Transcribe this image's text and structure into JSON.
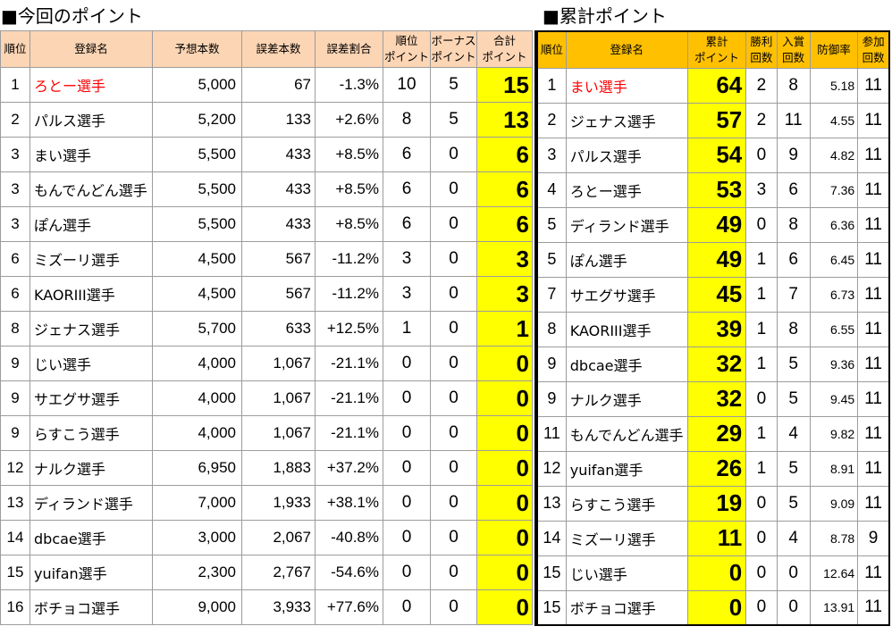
{
  "colors": {
    "current_header_bg": "#FCD5B4",
    "cumulative_header_bg": "#FFC000",
    "points_column_bg": "#FFFF00",
    "text": "#000000"
  },
  "current": {
    "title": "■今回のポイント",
    "columns": [
      {
        "key": "rank",
        "label": "順位"
      },
      {
        "key": "name",
        "label": "登録名"
      },
      {
        "key": "predicted",
        "label": "予想本数"
      },
      {
        "key": "error",
        "label": "誤差本数"
      },
      {
        "key": "error_rate",
        "label": "誤差割合"
      },
      {
        "key": "rank_points",
        "label": "順位\nポイント"
      },
      {
        "key": "bonus_points",
        "label": "ボーナス\nポイント"
      },
      {
        "key": "total_points",
        "label": "合計\nポイント"
      }
    ],
    "rows": [
      {
        "rank": "1",
        "name": "ろとー選手",
        "name_color": "#FF0000",
        "predicted": "5,000",
        "error": "67",
        "error_rate": "-1.3%",
        "rank_points": "10",
        "bonus_points": "5",
        "total_points": "15"
      },
      {
        "rank": "2",
        "name": "パルス選手",
        "predicted": "5,200",
        "error": "133",
        "error_rate": "+2.6%",
        "rank_points": "8",
        "bonus_points": "5",
        "total_points": "13"
      },
      {
        "rank": "3",
        "name": "まい選手",
        "predicted": "5,500",
        "error": "433",
        "error_rate": "+8.5%",
        "rank_points": "6",
        "bonus_points": "0",
        "total_points": "6"
      },
      {
        "rank": "3",
        "name": "もんでんどん選手",
        "predicted": "5,500",
        "error": "433",
        "error_rate": "+8.5%",
        "rank_points": "6",
        "bonus_points": "0",
        "total_points": "6"
      },
      {
        "rank": "3",
        "name": "ぽん選手",
        "predicted": "5,500",
        "error": "433",
        "error_rate": "+8.5%",
        "rank_points": "6",
        "bonus_points": "0",
        "total_points": "6"
      },
      {
        "rank": "6",
        "name": "ミズーリ選手",
        "predicted": "4,500",
        "error": "567",
        "error_rate": "-11.2%",
        "rank_points": "3",
        "bonus_points": "0",
        "total_points": "3"
      },
      {
        "rank": "6",
        "name": "KAORIII選手",
        "predicted": "4,500",
        "error": "567",
        "error_rate": "-11.2%",
        "rank_points": "3",
        "bonus_points": "0",
        "total_points": "3"
      },
      {
        "rank": "8",
        "name": "ジェナス選手",
        "predicted": "5,700",
        "error": "633",
        "error_rate": "+12.5%",
        "rank_points": "1",
        "bonus_points": "0",
        "total_points": "1"
      },
      {
        "rank": "9",
        "name": "じい選手",
        "predicted": "4,000",
        "error": "1,067",
        "error_rate": "-21.1%",
        "rank_points": "0",
        "bonus_points": "0",
        "total_points": "0"
      },
      {
        "rank": "9",
        "name": "サエグサ選手",
        "predicted": "4,000",
        "error": "1,067",
        "error_rate": "-21.1%",
        "rank_points": "0",
        "bonus_points": "0",
        "total_points": "0"
      },
      {
        "rank": "9",
        "name": "らすこう選手",
        "predicted": "4,000",
        "error": "1,067",
        "error_rate": "-21.1%",
        "rank_points": "0",
        "bonus_points": "0",
        "total_points": "0"
      },
      {
        "rank": "12",
        "name": "ナルク選手",
        "predicted": "6,950",
        "error": "1,883",
        "error_rate": "+37.2%",
        "rank_points": "0",
        "bonus_points": "0",
        "total_points": "0"
      },
      {
        "rank": "13",
        "name": "ディランド選手",
        "predicted": "7,000",
        "error": "1,933",
        "error_rate": "+38.1%",
        "rank_points": "0",
        "bonus_points": "0",
        "total_points": "0"
      },
      {
        "rank": "14",
        "name": "dbcae選手",
        "predicted": "3,000",
        "error": "2,067",
        "error_rate": "-40.8%",
        "rank_points": "0",
        "bonus_points": "0",
        "total_points": "0"
      },
      {
        "rank": "15",
        "name": "yuifan選手",
        "predicted": "2,300",
        "error": "2,767",
        "error_rate": "-54.6%",
        "rank_points": "0",
        "bonus_points": "0",
        "total_points": "0"
      },
      {
        "rank": "16",
        "name": "ボチョコ選手",
        "predicted": "9,000",
        "error": "3,933",
        "error_rate": "+77.6%",
        "rank_points": "0",
        "bonus_points": "0",
        "total_points": "0"
      }
    ]
  },
  "cumulative": {
    "title": "■累計ポイント",
    "columns": [
      {
        "key": "rank",
        "label": "順位"
      },
      {
        "key": "name",
        "label": "登録名"
      },
      {
        "key": "cum_points",
        "label": "累計\nポイント"
      },
      {
        "key": "wins",
        "label": "勝利\n回数"
      },
      {
        "key": "placings",
        "label": "入賞\n回数"
      },
      {
        "key": "defense_rate",
        "label": "防御率"
      },
      {
        "key": "appearances",
        "label": "参加\n回数"
      }
    ],
    "rows": [
      {
        "rank": "1",
        "name": "まい選手",
        "name_color": "#FF0000",
        "cum_points": "64",
        "wins": "2",
        "placings": "8",
        "defense_rate": "5.18",
        "appearances": "11"
      },
      {
        "rank": "2",
        "name": "ジェナス選手",
        "cum_points": "57",
        "wins": "2",
        "placings": "11",
        "defense_rate": "4.55",
        "appearances": "11"
      },
      {
        "rank": "3",
        "name": "パルス選手",
        "cum_points": "54",
        "wins": "0",
        "placings": "9",
        "defense_rate": "4.82",
        "appearances": "11"
      },
      {
        "rank": "4",
        "name": "ろとー選手",
        "cum_points": "53",
        "wins": "3",
        "placings": "6",
        "defense_rate": "7.36",
        "appearances": "11"
      },
      {
        "rank": "5",
        "name": "ディランド選手",
        "cum_points": "49",
        "wins": "0",
        "placings": "8",
        "defense_rate": "6.36",
        "appearances": "11"
      },
      {
        "rank": "5",
        "name": "ぽん選手",
        "cum_points": "49",
        "wins": "1",
        "placings": "6",
        "defense_rate": "6.45",
        "appearances": "11"
      },
      {
        "rank": "7",
        "name": "サエグサ選手",
        "cum_points": "45",
        "wins": "1",
        "placings": "7",
        "defense_rate": "6.73",
        "appearances": "11"
      },
      {
        "rank": "8",
        "name": "KAORIII選手",
        "cum_points": "39",
        "wins": "1",
        "placings": "8",
        "defense_rate": "6.55",
        "appearances": "11"
      },
      {
        "rank": "9",
        "name": "dbcae選手",
        "cum_points": "32",
        "wins": "1",
        "placings": "5",
        "defense_rate": "9.36",
        "appearances": "11"
      },
      {
        "rank": "9",
        "name": "ナルク選手",
        "cum_points": "32",
        "wins": "0",
        "placings": "5",
        "defense_rate": "9.45",
        "appearances": "11"
      },
      {
        "rank": "11",
        "name": "もんでんどん選手",
        "cum_points": "29",
        "wins": "1",
        "placings": "4",
        "defense_rate": "9.82",
        "appearances": "11"
      },
      {
        "rank": "12",
        "name": "yuifan選手",
        "cum_points": "26",
        "wins": "1",
        "placings": "5",
        "defense_rate": "8.91",
        "appearances": "11"
      },
      {
        "rank": "13",
        "name": "らすこう選手",
        "cum_points": "19",
        "wins": "0",
        "placings": "5",
        "defense_rate": "9.09",
        "appearances": "11"
      },
      {
        "rank": "14",
        "name": "ミズーリ選手",
        "cum_points": "11",
        "wins": "0",
        "placings": "4",
        "defense_rate": "8.78",
        "appearances": "9"
      },
      {
        "rank": "15",
        "name": "じい選手",
        "cum_points": "0",
        "wins": "0",
        "placings": "0",
        "defense_rate": "12.64",
        "appearances": "11"
      },
      {
        "rank": "15",
        "name": "ボチョコ選手",
        "cum_points": "0",
        "wins": "0",
        "placings": "0",
        "defense_rate": "13.91",
        "appearances": "11"
      }
    ]
  }
}
